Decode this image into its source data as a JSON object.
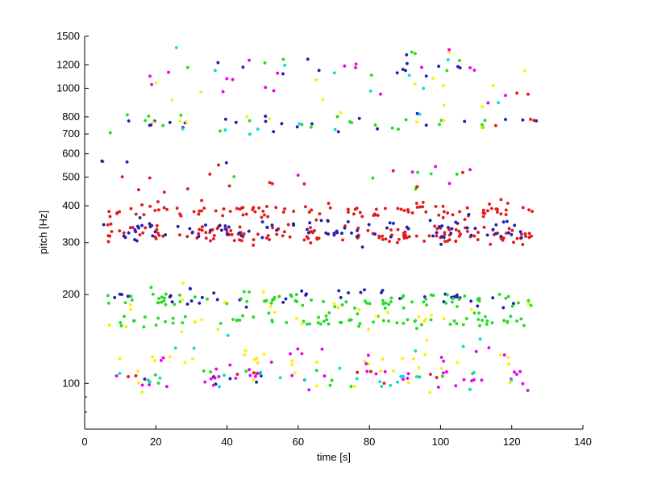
{
  "chart_data": {
    "type": "scatter",
    "title": "",
    "xlabel": "time [s]",
    "ylabel": "pitch [Hz]",
    "xlim": [
      0,
      140
    ],
    "ylim": [
      70,
      1500
    ],
    "yscale": "log",
    "grid": false,
    "legend": "none",
    "xticks": [
      0,
      20,
      40,
      60,
      80,
      100,
      120,
      140
    ],
    "xtick_labels": [
      "0",
      "20",
      "40",
      "60",
      "80",
      "100",
      "120",
      "140"
    ],
    "yticks": [
      100,
      200,
      300,
      400,
      500,
      600,
      700,
      800,
      1000,
      1200,
      1500
    ],
    "ytick_labels": [
      "100",
      "200",
      "300",
      "400",
      "500",
      "600",
      "700",
      "800",
      "1000",
      "1200",
      "1500"
    ],
    "series": [
      {
        "name": "red",
        "color": "#e41a1c",
        "bands": [
          {
            "center": 320,
            "spread": 0.035,
            "count": 150,
            "t0": 6,
            "t1": 126
          },
          {
            "center": 385,
            "spread": 0.03,
            "count": 110,
            "t0": 6,
            "t1": 126
          },
          {
            "center": 480,
            "spread": 0.06,
            "count": 16,
            "t0": 5,
            "t1": 125
          },
          {
            "center": 1000,
            "spread": 0.05,
            "count": 2,
            "t0": 120,
            "t1": 127
          },
          {
            "center": 760,
            "spread": 0.04,
            "count": 3,
            "t0": 115,
            "t1": 127
          },
          {
            "center": 104,
            "spread": 0.04,
            "count": 10,
            "t0": 10,
            "t1": 125
          }
        ]
      },
      {
        "name": "blue",
        "color": "#1f1fb4",
        "bands": [
          {
            "center": 330,
            "spread": 0.045,
            "count": 95,
            "t0": 5,
            "t1": 126
          },
          {
            "center": 195,
            "spread": 0.03,
            "count": 45,
            "t0": 8,
            "t1": 124
          },
          {
            "center": 760,
            "spread": 0.035,
            "count": 24,
            "t0": 5,
            "t1": 127
          },
          {
            "center": 1180,
            "spread": 0.05,
            "count": 14,
            "t0": 10,
            "t1": 125
          },
          {
            "center": 560,
            "spread": 0.03,
            "count": 3,
            "t0": 4,
            "t1": 40
          },
          {
            "center": 104,
            "spread": 0.04,
            "count": 6,
            "t0": 6,
            "t1": 124
          }
        ]
      },
      {
        "name": "green",
        "color": "#22dd22",
        "bands": [
          {
            "center": 190,
            "spread": 0.035,
            "count": 85,
            "t0": 6,
            "t1": 126
          },
          {
            "center": 163,
            "spread": 0.025,
            "count": 75,
            "t0": 8,
            "t1": 126
          },
          {
            "center": 760,
            "spread": 0.04,
            "count": 22,
            "t0": 7,
            "t1": 125
          },
          {
            "center": 105,
            "spread": 0.035,
            "count": 14,
            "t0": 8,
            "t1": 120
          },
          {
            "center": 1200,
            "spread": 0.06,
            "count": 8,
            "t0": 20,
            "t1": 118
          },
          {
            "center": 500,
            "spread": 0.08,
            "count": 6,
            "t0": 40,
            "t1": 115
          }
        ]
      },
      {
        "name": "yellow",
        "color": "#ffee00",
        "bands": [
          {
            "center": 170,
            "spread": 0.08,
            "count": 30,
            "t0": 6,
            "t1": 125
          },
          {
            "center": 120,
            "spread": 0.05,
            "count": 24,
            "t0": 6,
            "t1": 125
          },
          {
            "center": 1000,
            "spread": 0.12,
            "count": 16,
            "t0": 15,
            "t1": 125
          },
          {
            "center": 104,
            "spread": 0.06,
            "count": 16,
            "t0": 6,
            "t1": 125
          },
          {
            "center": 760,
            "spread": 0.05,
            "count": 6,
            "t0": 15,
            "t1": 115
          }
        ]
      },
      {
        "name": "magenta",
        "color": "#ee00ee",
        "bands": [
          {
            "center": 104,
            "spread": 0.045,
            "count": 40,
            "t0": 8,
            "t1": 125
          },
          {
            "center": 1100,
            "spread": 0.12,
            "count": 20,
            "t0": 8,
            "t1": 125
          },
          {
            "center": 125,
            "spread": 0.06,
            "count": 14,
            "t0": 10,
            "t1": 122
          },
          {
            "center": 500,
            "spread": 0.08,
            "count": 5,
            "t0": 30,
            "t1": 110
          }
        ]
      },
      {
        "name": "cyan",
        "color": "#00dddd",
        "bands": [
          {
            "center": 104,
            "spread": 0.05,
            "count": 20,
            "t0": 6,
            "t1": 125
          },
          {
            "center": 1150,
            "spread": 0.12,
            "count": 10,
            "t0": 20,
            "t1": 125
          },
          {
            "center": 740,
            "spread": 0.05,
            "count": 6,
            "t0": 10,
            "t1": 115
          },
          {
            "center": 130,
            "spread": 0.06,
            "count": 6,
            "t0": 10,
            "t1": 120
          }
        ]
      }
    ]
  }
}
